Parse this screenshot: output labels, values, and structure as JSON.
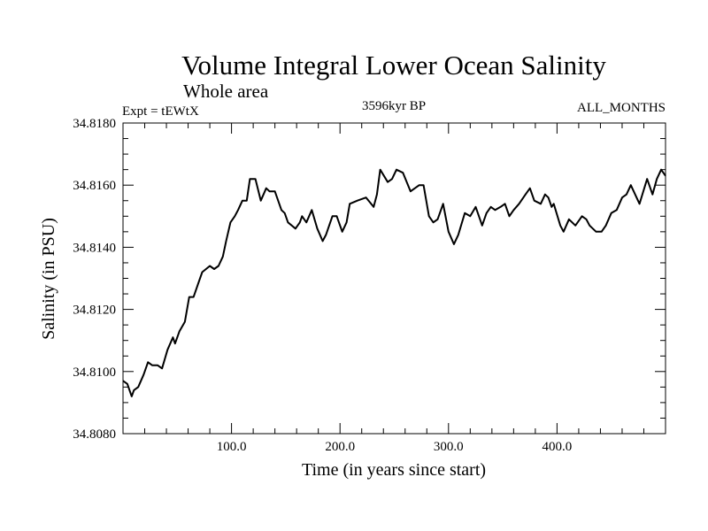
{
  "chart_data": {
    "type": "line",
    "title": "Volume Integral Lower Ocean Salinity",
    "subtitle": "Whole area",
    "annotations": {
      "left": "Expt = tEWtX",
      "center": "3596kyr BP",
      "right": "ALL_MONTHS"
    },
    "xlabel": "Time (in years since start)",
    "ylabel": "Salinity (in PSU)",
    "xlim": [
      0,
      500
    ],
    "ylim": [
      34.808,
      34.818
    ],
    "xticks": [
      100,
      200,
      300,
      400
    ],
    "xtick_labels": [
      "100.0",
      "200.0",
      "300.0",
      "400.0"
    ],
    "yticks": [
      34.808,
      34.81,
      34.812,
      34.814,
      34.816,
      34.818
    ],
    "ytick_labels": [
      "34.8080",
      "34.8100",
      "34.8120",
      "34.8140",
      "34.8160",
      "34.8180"
    ],
    "grid": false,
    "series": [
      {
        "name": "salinity",
        "color": "#000000",
        "x": [
          0,
          4,
          8,
          10,
          14,
          19,
          23,
          27,
          32,
          36,
          41,
          46,
          48,
          52,
          57,
          61,
          65,
          70,
          73,
          80,
          84,
          88,
          92,
          95,
          99,
          103,
          106,
          110,
          114,
          117,
          122,
          127,
          132,
          135,
          140,
          146,
          149,
          152,
          159,
          163,
          165,
          169,
          174,
          179,
          184,
          187,
          193,
          197,
          202,
          206,
          209,
          216,
          224,
          231,
          234,
          237,
          244,
          248,
          252,
          258,
          265,
          269,
          273,
          277,
          282,
          286,
          290,
          295,
          300,
          305,
          309,
          315,
          320,
          325,
          331,
          335,
          339,
          343,
          348,
          352,
          356,
          360,
          365,
          371,
          375,
          379,
          385,
          389,
          392,
          395,
          397,
          403,
          406,
          411,
          417,
          423,
          427,
          430,
          436,
          441,
          445,
          450,
          455,
          460,
          464,
          468,
          476,
          483,
          488,
          492,
          496,
          500
        ],
        "y": [
          34.8097,
          34.8096,
          34.8092,
          34.8094,
          34.8095,
          34.8099,
          34.8103,
          34.8102,
          34.8102,
          34.8101,
          34.8107,
          34.8111,
          34.8109,
          34.8113,
          34.8116,
          34.8124,
          34.8124,
          34.8129,
          34.8132,
          34.8134,
          34.8133,
          34.8134,
          34.8137,
          34.8142,
          34.8148,
          34.815,
          34.8152,
          34.8155,
          34.8155,
          34.8162,
          34.8162,
          34.8155,
          34.8159,
          34.8158,
          34.8158,
          34.8152,
          34.8151,
          34.8148,
          34.8146,
          34.8148,
          34.815,
          34.8148,
          34.8152,
          34.8146,
          34.8142,
          34.8144,
          34.815,
          34.815,
          34.8145,
          34.8148,
          34.8154,
          34.8155,
          34.8156,
          34.8153,
          34.8157,
          34.8165,
          34.8161,
          34.8162,
          34.8165,
          34.8164,
          34.8158,
          34.8159,
          34.816,
          34.816,
          34.815,
          34.8148,
          34.8149,
          34.8154,
          34.8145,
          34.8141,
          34.8144,
          34.8151,
          34.815,
          34.8153,
          34.8147,
          34.8151,
          34.8153,
          34.8152,
          34.8153,
          34.8154,
          34.815,
          34.8152,
          34.8154,
          34.8157,
          34.8159,
          34.8155,
          34.8154,
          34.8157,
          34.8156,
          34.8153,
          34.8154,
          34.8147,
          34.8145,
          34.8149,
          34.8147,
          34.815,
          34.8149,
          34.8147,
          34.8145,
          34.8145,
          34.8147,
          34.8151,
          34.8152,
          34.8156,
          34.8157,
          34.816,
          34.8154,
          34.8162,
          34.8157,
          34.8162,
          34.8165,
          34.8163
        ]
      }
    ]
  }
}
